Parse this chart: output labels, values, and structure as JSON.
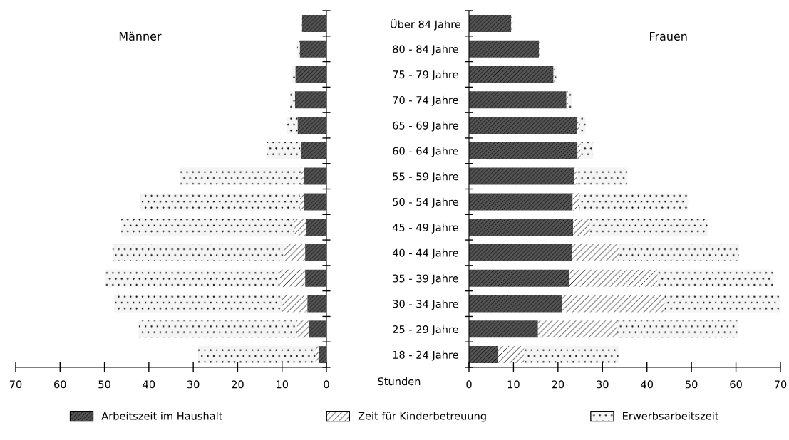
{
  "chart_data": [
    {
      "type": "bar",
      "orientation": "horizontal",
      "stacked": true,
      "title": "Männer",
      "categories": [
        "Über 84 Jahre",
        "80 - 84 Jahre",
        "75 - 79 Jahre",
        "70 - 74 Jahre",
        "65 - 69 Jahre",
        "60 - 64 Jahre",
        "55 - 59 Jahre",
        "50 - 54 Jahre",
        "45 - 49 Jahre",
        "40 - 44 Jahre",
        "35 - 39 Jahre",
        "30 - 34 Jahre",
        "25 - 29 Jahre",
        "18 - 24 Jahre"
      ],
      "series": [
        {
          "name": "Arbeitszeit im Haushalt",
          "color": "#555555",
          "values": [
            5.5,
            6.0,
            7.0,
            7.1,
            6.5,
            5.7,
            5.1,
            5.1,
            4.5,
            4.8,
            4.8,
            4.3,
            3.9,
            1.8
          ]
        },
        {
          "name": "Zeit für Kinderbetreuung",
          "color": "#ffffff",
          "values": [
            0.1,
            0,
            0,
            0,
            0,
            0.2,
            0.6,
            0.9,
            2.7,
            4.7,
            5.7,
            5.7,
            2.7,
            0.7
          ]
        },
        {
          "name": "Erwerbsarbeitszeit",
          "color": "#f4f4f4",
          "values": [
            0,
            0.6,
            0.7,
            1.1,
            2.5,
            7.5,
            27.2,
            35.9,
            39.0,
            38.7,
            39.3,
            37.8,
            35.7,
            26.4
          ]
        }
      ],
      "xlim": [
        70,
        0
      ],
      "xticks": [
        70,
        60,
        50,
        40,
        30,
        20,
        10,
        0
      ],
      "legend": "bottom",
      "annotations": [
        "Stunden"
      ]
    },
    {
      "type": "bar",
      "orientation": "horizontal",
      "stacked": true,
      "title": "Frauen",
      "categories": [
        null,
        null,
        null,
        null,
        null,
        null,
        null,
        null,
        null,
        null,
        null,
        null,
        null,
        null
      ],
      "series": [
        {
          "color": "#555555",
          "values": [
            9.5,
            15.7,
            19.0,
            21.9,
            24.2,
            24.4,
            23.7,
            23.3,
            23.4,
            23.2,
            22.6,
            21.0,
            15.5,
            6.6
          ]
        },
        {
          "color": "#ffffff",
          "values": [
            0.3,
            0.3,
            0.2,
            0.4,
            0.6,
            0.7,
            0.5,
            1.6,
            3.8,
            10.6,
            19.8,
            23.0,
            17.8,
            5.8
          ]
        },
        {
          "color": "#f4f4f4",
          "values": [
            0,
            0,
            0.5,
            0.8,
            1.4,
            2.8,
            11.4,
            24.3,
            26.4,
            26.9,
            26.0,
            26.0,
            27.1,
            21.4
          ]
        }
      ],
      "xlim": [
        0,
        70
      ],
      "xticks": [
        0,
        10,
        20,
        30,
        40,
        50,
        60,
        70
      ],
      "tick_labels": "x"
    }
  ]
}
